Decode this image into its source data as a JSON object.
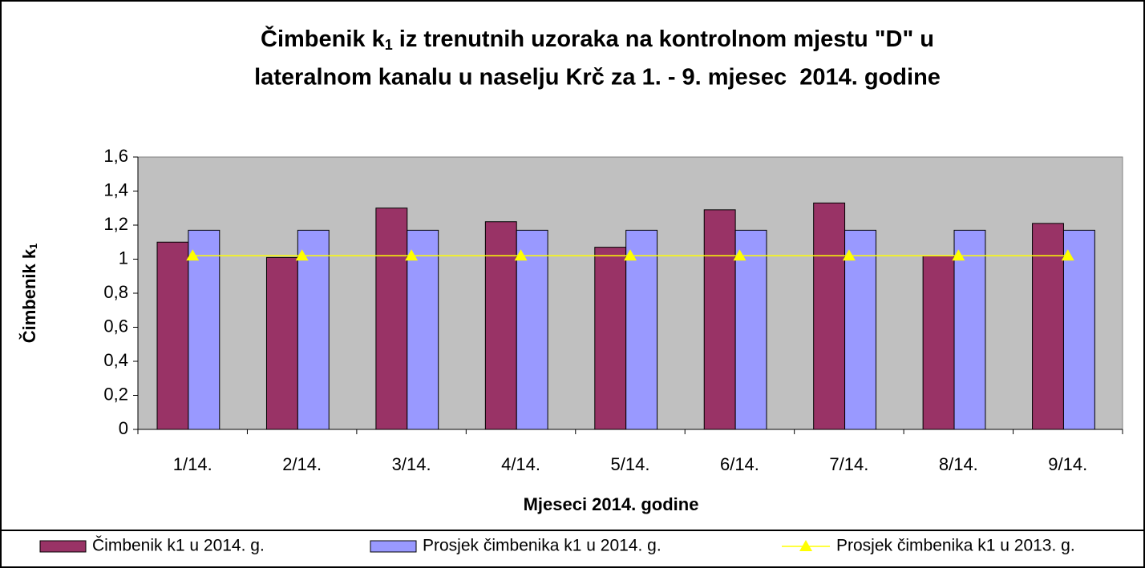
{
  "chart_data": {
    "type": "bar",
    "title": [
      "Čimbenik k",
      "1",
      " iz trenutnih uzoraka na kontrolnom mjestu \"D\" u",
      "lateralnom kanalu u naselju Krč za 1. - 9. mjesec  2014. godine"
    ],
    "xlabel": "Mjeseci 2014. godine",
    "ylabel": [
      "Čimbenik k",
      "1"
    ],
    "categories": [
      "1/14.",
      "2/14.",
      "3/14.",
      "4/14.",
      "5/14.",
      "6/14.",
      "7/14.",
      "8/14.",
      "9/14."
    ],
    "series": [
      {
        "name": "Čimbenik k1 u 2014. g.",
        "type": "bar",
        "color": "#993366",
        "values": [
          1.1,
          1.01,
          1.3,
          1.22,
          1.07,
          1.29,
          1.33,
          1.02,
          1.21
        ]
      },
      {
        "name": "Prosjek čimbenika k1 u 2014. g.",
        "type": "bar",
        "color": "#9999ff",
        "values": [
          1.17,
          1.17,
          1.17,
          1.17,
          1.17,
          1.17,
          1.17,
          1.17,
          1.17
        ]
      },
      {
        "name": "Prosjek čimbenika k1 u 2013. g.",
        "type": "line",
        "color": "#ffff00",
        "values": [
          1.02,
          1.02,
          1.02,
          1.02,
          1.02,
          1.02,
          1.02,
          1.02,
          1.02
        ]
      }
    ],
    "ylim": [
      0,
      1.6
    ],
    "yticks": [
      0,
      {
        "value": 0.2,
        "label": "0,2"
      },
      {
        "value": 0.4,
        "label": "0,4"
      },
      {
        "value": 0.6,
        "label": "0,6"
      },
      {
        "value": 0.8,
        "label": "0,8"
      },
      1,
      {
        "value": 1.2,
        "label": "1,2"
      },
      {
        "value": 1.4,
        "label": "1,4"
      },
      {
        "value": 1.6,
        "label": "1,6"
      }
    ],
    "plot_background": "#c0c0c0",
    "legend": "bottom"
  }
}
